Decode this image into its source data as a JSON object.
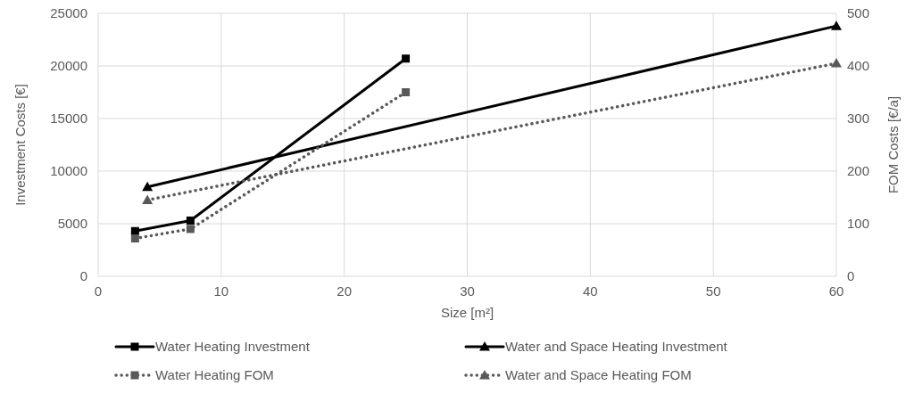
{
  "chart_data": {
    "type": "line",
    "xlabel": "Size [m²]",
    "ylabel": "Investment Costs [€]",
    "y2label": "FOM Costs [€/a]",
    "xlim": [
      0,
      60
    ],
    "xticks": [
      0,
      10,
      20,
      30,
      40,
      50,
      60
    ],
    "ylim": [
      0,
      25000
    ],
    "yticks": [
      0,
      5000,
      10000,
      15000,
      20000,
      25000
    ],
    "y2lim": [
      0,
      500
    ],
    "y2ticks": [
      0,
      100,
      200,
      300,
      400,
      500
    ],
    "grid": true,
    "legend": "bottom",
    "series": [
      {
        "name": "Water Heating Investment",
        "color": "#000000",
        "x": [
          3,
          7.5,
          25
        ],
        "values": [
          4300,
          5300,
          20700
        ],
        "marker": "square",
        "line_style": "solid"
      },
      {
        "name": "Water and Space Heating Investment",
        "color": "#000000",
        "x": [
          4,
          60
        ],
        "values": [
          8500,
          23800
        ],
        "marker": "triangle",
        "line_style": "solid"
      },
      {
        "name": "Water Heating FOM",
        "color": "#595959",
        "x": [
          3,
          7.5,
          25
        ],
        "values": [
          72,
          90,
          350
        ],
        "marker": "square",
        "line_style": "dotted",
        "axis": "y2"
      },
      {
        "name": "Water and Space Heating FOM",
        "color": "#595959",
        "x": [
          4,
          60
        ],
        "values": [
          145,
          405
        ],
        "marker": "triangle",
        "line_style": "dotted",
        "axis": "y2"
      }
    ]
  }
}
